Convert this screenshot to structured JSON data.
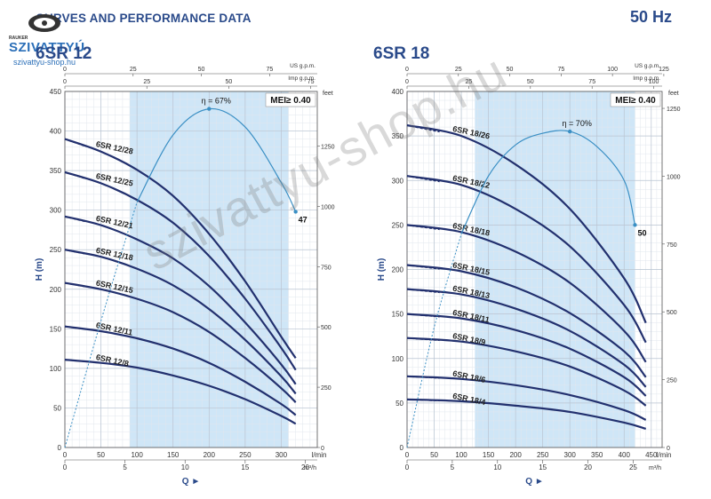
{
  "header": {
    "title": "CURVES AND PERFORMANCE DATA",
    "frequency": "50 Hz"
  },
  "logo": {
    "top": "RAUKER",
    "name": "SZIVATTYÚ",
    "url": "szivattyu-shop.hu"
  },
  "watermark": "szivattyu-shop.hu",
  "chart_data": [
    {
      "type": "line",
      "title": "6SR 12",
      "mei": "MEI≥ 0.40",
      "ylabel": "H (m)",
      "ylabel2": "feet",
      "xlabel": "Q ►",
      "units": {
        "lmin": "l/min",
        "m3h": "m³/h",
        "usgpm": "US g.p.m.",
        "impgpm": "Imp g.p.m."
      },
      "xlim": [
        0,
        350
      ],
      "ylim": [
        0,
        450
      ],
      "x_ticks": [
        0,
        50,
        100,
        150,
        200,
        250,
        300
      ],
      "y_ticks": [
        0,
        50,
        100,
        150,
        200,
        250,
        300,
        350,
        400,
        450
      ],
      "m3h_ticks": [
        0,
        5,
        10,
        15,
        20
      ],
      "usgpm_ticks": [
        0,
        25,
        50,
        75
      ],
      "impgpm_ticks": [
        0,
        25,
        50,
        75
      ],
      "feet_ticks": [
        0,
        250,
        500,
        750,
        1000,
        1250
      ],
      "band": [
        90,
        310
      ],
      "efficiency": {
        "label": "η = 67%",
        "end_label": "47",
        "points": [
          [
            0,
            0
          ],
          [
            50,
            160
          ],
          [
            100,
            310
          ],
          [
            150,
            395
          ],
          [
            200,
            428
          ],
          [
            250,
            405
          ],
          [
            300,
            335
          ],
          [
            320,
            298
          ]
        ]
      },
      "series": [
        {
          "name": "6SR 12/28",
          "x": [
            0,
            50,
            100,
            150,
            200,
            250,
            300,
            320
          ],
          "values": [
            390,
            374,
            351,
            318,
            270,
            210,
            140,
            113
          ]
        },
        {
          "name": "6SR 12/25",
          "x": [
            0,
            50,
            100,
            150,
            200,
            250,
            300,
            320
          ],
          "values": [
            348,
            334,
            313,
            284,
            242,
            188,
            126,
            98
          ]
        },
        {
          "name": "6SR 12/21",
          "x": [
            0,
            50,
            100,
            150,
            200,
            250,
            300,
            320
          ],
          "values": [
            292,
            281,
            263,
            239,
            204,
            158,
            105,
            80
          ]
        },
        {
          "name": "6SR 12/18",
          "x": [
            0,
            50,
            100,
            150,
            200,
            250,
            300,
            320
          ],
          "values": [
            250,
            241,
            226,
            205,
            175,
            136,
            90,
            68
          ]
        },
        {
          "name": "6SR 12/15",
          "x": [
            0,
            50,
            100,
            150,
            200,
            250,
            300,
            320
          ],
          "values": [
            208,
            200,
            188,
            171,
            146,
            113,
            75,
            57
          ]
        },
        {
          "name": "6SR 12/11",
          "x": [
            0,
            50,
            100,
            150,
            200,
            250,
            300,
            320
          ],
          "values": [
            153,
            147,
            138,
            125,
            107,
            83,
            55,
            41
          ]
        },
        {
          "name": "6SR 12/8",
          "x": [
            0,
            50,
            100,
            150,
            200,
            250,
            300,
            320
          ],
          "values": [
            111,
            107,
            101,
            91,
            78,
            61,
            40,
            30
          ]
        }
      ]
    },
    {
      "type": "line",
      "title": "6SR 18",
      "mei": "MEI≥ 0.40",
      "ylabel": "H (m)",
      "ylabel2": "feet",
      "xlabel": "Q ►",
      "units": {
        "lmin": "l/min",
        "m3h": "m³/h",
        "usgpm": "US g.p.m.",
        "impgpm": "Imp g.p.m."
      },
      "xlim": [
        0,
        470
      ],
      "ylim": [
        0,
        400
      ],
      "x_ticks": [
        0,
        50,
        100,
        150,
        200,
        250,
        300,
        350,
        400,
        450
      ],
      "y_ticks": [
        0,
        50,
        100,
        150,
        200,
        250,
        300,
        350,
        400
      ],
      "m3h_ticks": [
        0,
        5,
        10,
        15,
        20,
        25
      ],
      "usgpm_ticks": [
        0,
        25,
        50,
        75,
        100,
        125
      ],
      "impgpm_ticks": [
        0,
        25,
        50,
        75,
        100
      ],
      "feet_ticks": [
        0,
        250,
        500,
        750,
        1000,
        1250
      ],
      "band": [
        125,
        420
      ],
      "efficiency": {
        "label": "η = 70%",
        "end_label": "50",
        "points": [
          [
            0,
            0
          ],
          [
            50,
            135
          ],
          [
            100,
            240
          ],
          [
            150,
            305
          ],
          [
            200,
            340
          ],
          [
            250,
            353
          ],
          [
            300,
            355
          ],
          [
            350,
            338
          ],
          [
            400,
            300
          ],
          [
            420,
            250
          ]
        ]
      },
      "series": [
        {
          "name": "6SR 18/26",
          "x": [
            0,
            100,
            200,
            300,
            400,
            440
          ],
          "values": [
            362,
            350,
            318,
            268,
            190,
            140
          ]
        },
        {
          "name": "6SR 18/22",
          "x": [
            0,
            100,
            200,
            300,
            400,
            440
          ],
          "values": [
            305,
            295,
            268,
            226,
            160,
            118
          ]
        },
        {
          "name": "6SR 18/18",
          "x": [
            0,
            100,
            200,
            300,
            400,
            440
          ],
          "values": [
            250,
            242,
            220,
            185,
            131,
            96
          ]
        },
        {
          "name": "6SR 18/15",
          "x": [
            0,
            100,
            200,
            300,
            400,
            440
          ],
          "values": [
            205,
            198,
            180,
            151,
            108,
            79
          ]
        },
        {
          "name": "6SR 18/13",
          "x": [
            0,
            100,
            200,
            300,
            400,
            440
          ],
          "values": [
            178,
            172,
            156,
            131,
            93,
            68
          ]
        },
        {
          "name": "6SR 18/11",
          "x": [
            0,
            100,
            200,
            300,
            400,
            440
          ],
          "values": [
            150,
            145,
            132,
            111,
            79,
            58
          ]
        },
        {
          "name": "6SR 18/9",
          "x": [
            0,
            100,
            200,
            300,
            400,
            440
          ],
          "values": [
            123,
            119,
            108,
            91,
            64,
            47
          ]
        },
        {
          "name": "6SR 18/6",
          "x": [
            0,
            100,
            200,
            300,
            400,
            440
          ],
          "values": [
            80,
            77,
            70,
            59,
            42,
            31
          ]
        },
        {
          "name": "6SR 18/4",
          "x": [
            0,
            100,
            200,
            300,
            400,
            440
          ],
          "values": [
            54,
            52,
            47,
            40,
            28,
            21
          ]
        }
      ]
    }
  ]
}
